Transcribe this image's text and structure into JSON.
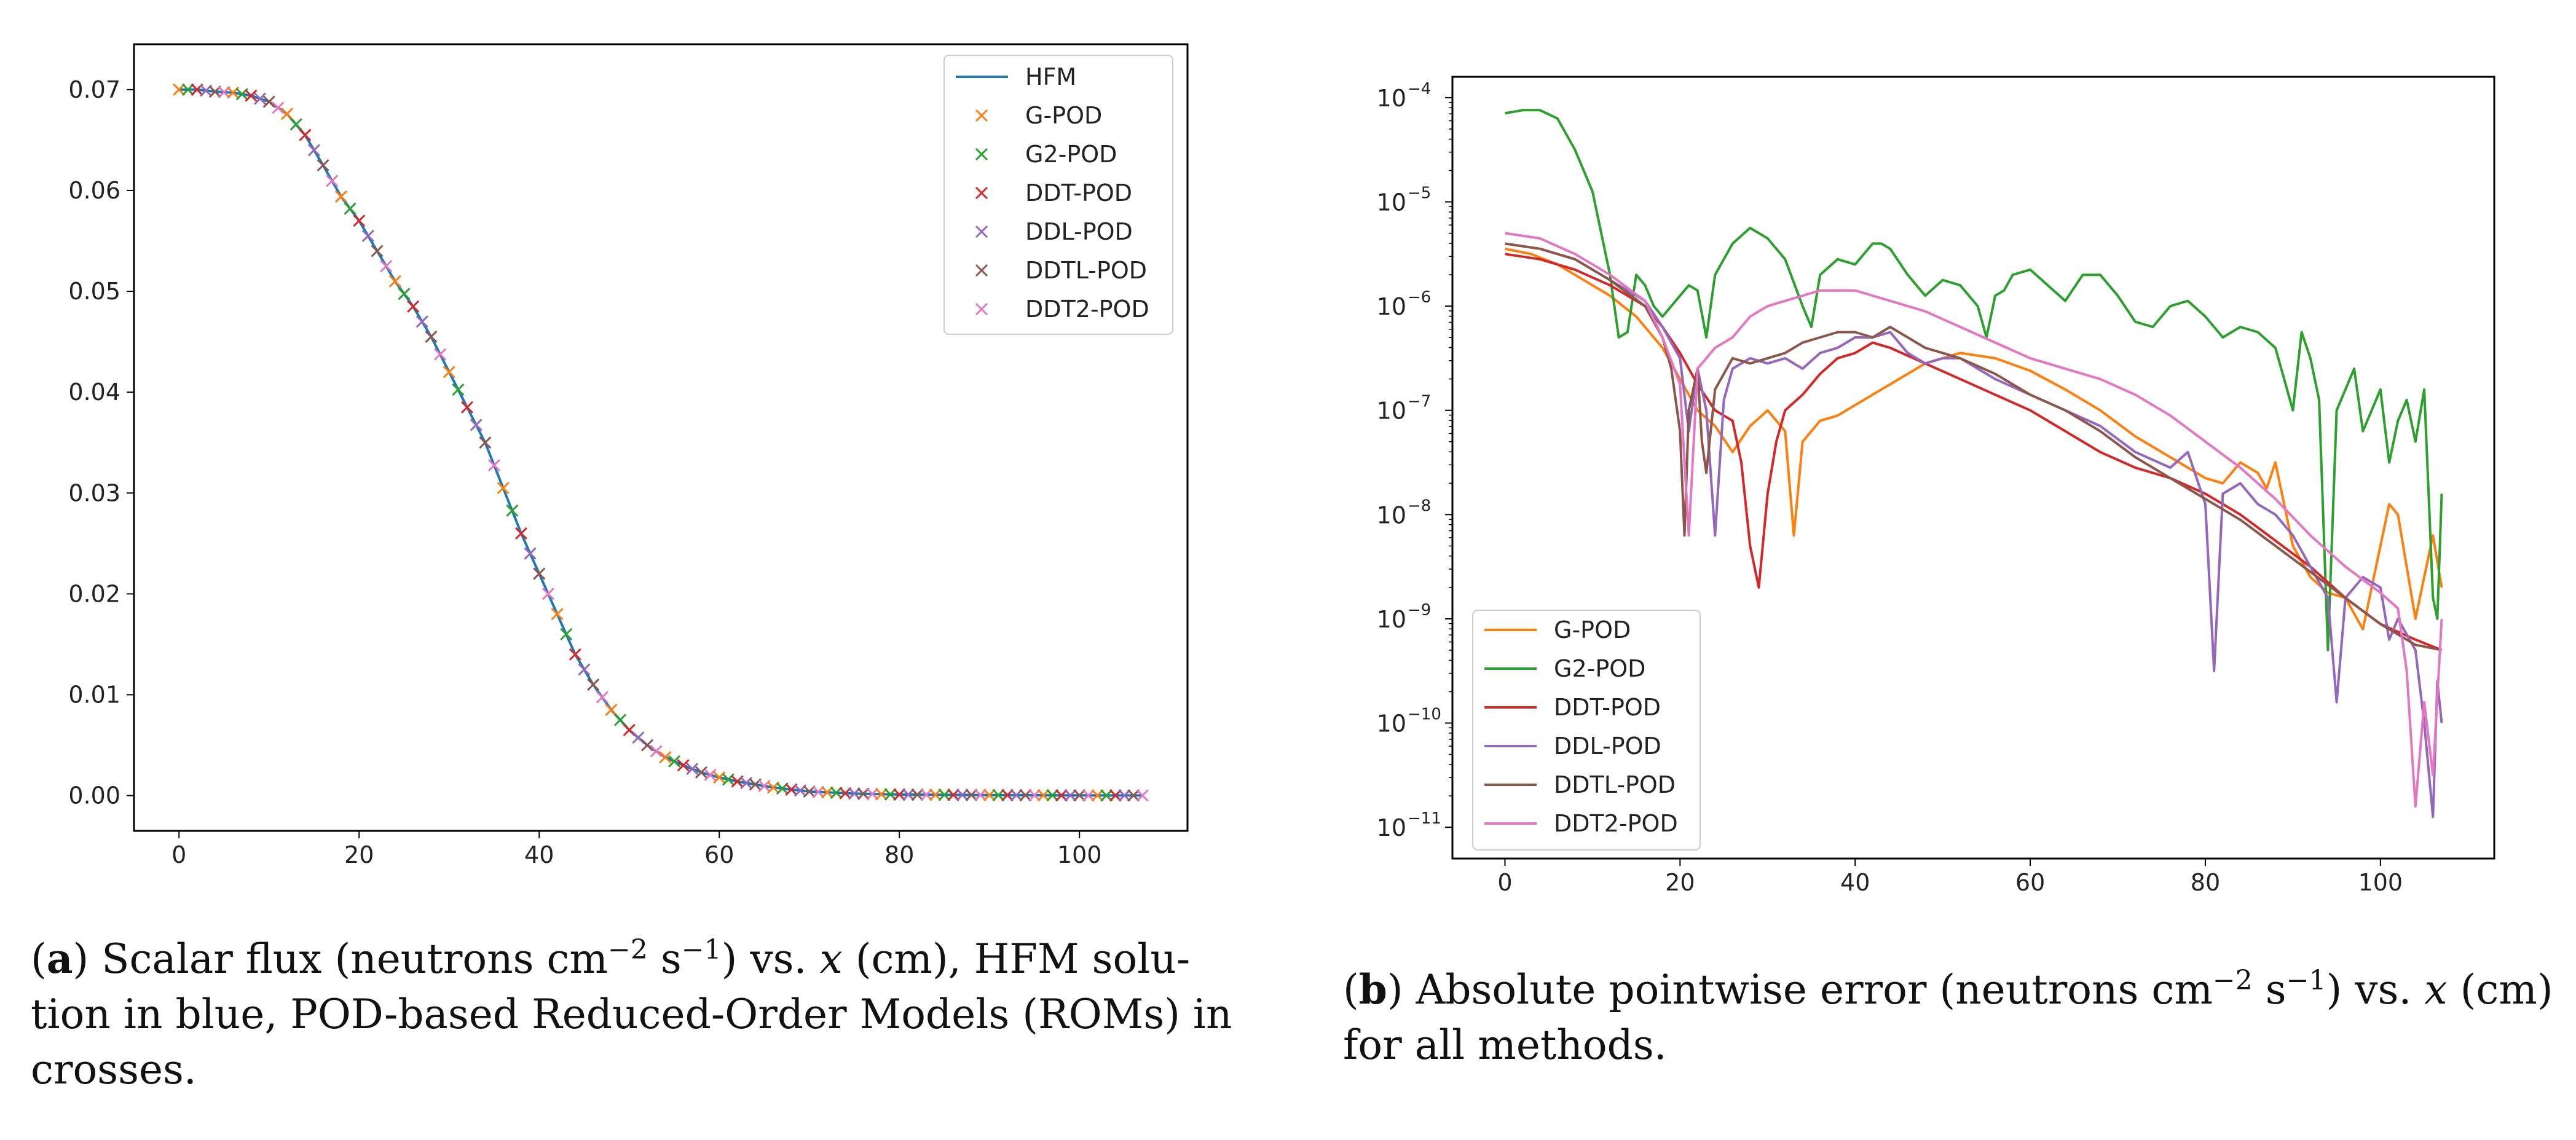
{
  "chart_data": [
    {
      "type": "line",
      "panel": "a",
      "xlim": [
        -5,
        112
      ],
      "ylim": [
        -0.0035,
        0.0745
      ],
      "x_ticks": [
        0,
        20,
        40,
        60,
        80,
        100
      ],
      "y_ticks": [
        0.0,
        0.01,
        0.02,
        0.03,
        0.04,
        0.05,
        0.06,
        0.07
      ],
      "x_tick_labels": [
        "0",
        "20",
        "40",
        "60",
        "80",
        "100"
      ],
      "y_tick_labels": [
        "0.00",
        "0.01",
        "0.02",
        "0.03",
        "0.04",
        "0.05",
        "0.06",
        "0.07"
      ],
      "legend_position": "top-right",
      "hfm_line": {
        "name": "HFM",
        "color": "#1f77b4",
        "x": [
          0,
          2,
          4,
          6,
          8,
          10,
          12,
          14,
          16,
          18,
          20,
          22,
          24,
          26,
          28,
          30,
          32,
          34,
          36,
          38,
          40,
          42,
          44,
          46,
          48,
          50,
          52,
          54,
          56,
          58,
          60,
          62,
          64,
          66,
          68,
          70,
          75,
          80,
          90,
          100,
          107
        ],
        "y": [
          0.07,
          0.07,
          0.0698,
          0.0697,
          0.0694,
          0.0688,
          0.0676,
          0.0655,
          0.0625,
          0.0594,
          0.057,
          0.054,
          0.051,
          0.0485,
          0.0455,
          0.042,
          0.0385,
          0.035,
          0.0305,
          0.026,
          0.022,
          0.018,
          0.014,
          0.011,
          0.0085,
          0.0065,
          0.005,
          0.0038,
          0.003,
          0.0023,
          0.0018,
          0.0014,
          0.0011,
          0.0008,
          0.0006,
          0.0004,
          0.0002,
          0.0001,
          5e-05,
          2e-05,
          1e-05
        ]
      },
      "marker_series": [
        {
          "name": "G-POD",
          "color": "#ff7f0e",
          "marker": "x"
        },
        {
          "name": "G2-POD",
          "color": "#2ca02c",
          "marker": "x"
        },
        {
          "name": "DDT-POD",
          "color": "#d62728",
          "marker": "x"
        },
        {
          "name": "DDL-POD",
          "color": "#9467bd",
          "marker": "x"
        },
        {
          "name": "DDTL-POD",
          "color": "#8c564b",
          "marker": "x"
        },
        {
          "name": "DDT2-POD",
          "color": "#e377c2",
          "marker": "x"
        }
      ],
      "marker_x_range": [
        0,
        107
      ],
      "marker_spacing": 1.0
    },
    {
      "type": "line",
      "panel": "b",
      "yscale": "log",
      "xlim": [
        -6,
        113
      ],
      "ylim_log10": [
        -11.3,
        -3.8
      ],
      "x_ticks": [
        0,
        20,
        40,
        60,
        80,
        100
      ],
      "x_tick_labels": [
        "0",
        "20",
        "40",
        "60",
        "80",
        "100"
      ],
      "y_ticks_log10": [
        -4,
        -5,
        -6,
        -7,
        -8,
        -9,
        -10,
        -11
      ],
      "y_tick_base": "10",
      "y_tick_exponents": [
        "−4",
        "−5",
        "−6",
        "−7",
        "−8",
        "−9",
        "−10",
        "−11"
      ],
      "legend_position": "bottom-left",
      "series": [
        {
          "name": "G-POD",
          "color": "#ff7f0e",
          "x": [
            0,
            3,
            6,
            9,
            12,
            15,
            18,
            20,
            22,
            24,
            26,
            28,
            30,
            32,
            33,
            34,
            36,
            38,
            40,
            44,
            48,
            52,
            56,
            60,
            64,
            68,
            72,
            76,
            80,
            82,
            84,
            86,
            87,
            88,
            90,
            92,
            94,
            96,
            98,
            100,
            101,
            102,
            104,
            106,
            107
          ],
          "y": [
            -5.45,
            -5.5,
            -5.6,
            -5.75,
            -5.9,
            -6.1,
            -6.4,
            -6.7,
            -7.0,
            -7.15,
            -7.4,
            -7.15,
            -7.0,
            -7.2,
            -8.2,
            -7.3,
            -7.1,
            -7.05,
            -6.95,
            -6.75,
            -6.55,
            -6.45,
            -6.5,
            -6.62,
            -6.8,
            -7.0,
            -7.25,
            -7.45,
            -7.65,
            -7.7,
            -7.5,
            -7.6,
            -7.75,
            -7.5,
            -8.3,
            -8.6,
            -8.75,
            -8.8,
            -9.1,
            -8.3,
            -7.9,
            -8.0,
            -9.0,
            -8.2,
            -8.7
          ]
        },
        {
          "name": "G2-POD",
          "color": "#2ca02c",
          "x": [
            0,
            2,
            4,
            6,
            8,
            10,
            12,
            13,
            14,
            15,
            16,
            17,
            18,
            19,
            20,
            21,
            22,
            23,
            24,
            26,
            28,
            30,
            32,
            34,
            35,
            36,
            38,
            40,
            42,
            43,
            44,
            46,
            48,
            50,
            52,
            54,
            55,
            56,
            57,
            58,
            60,
            62,
            64,
            66,
            68,
            70,
            72,
            74,
            76,
            78,
            80,
            82,
            84,
            86,
            88,
            89,
            90,
            91,
            92,
            93,
            94,
            95,
            96,
            97,
            98,
            99,
            100,
            101,
            102,
            103,
            104,
            105,
            106,
            106.5,
            107
          ],
          "y": [
            -4.15,
            -4.12,
            -4.12,
            -4.2,
            -4.5,
            -4.9,
            -5.7,
            -6.3,
            -6.25,
            -5.7,
            -5.8,
            -6.0,
            -6.1,
            -6.0,
            -5.9,
            -5.8,
            -5.85,
            -6.3,
            -5.7,
            -5.4,
            -5.25,
            -5.35,
            -5.55,
            -6.0,
            -6.2,
            -5.7,
            -5.55,
            -5.6,
            -5.4,
            -5.4,
            -5.45,
            -5.7,
            -5.9,
            -5.75,
            -5.8,
            -6.0,
            -6.3,
            -5.9,
            -5.85,
            -5.7,
            -5.65,
            -5.8,
            -5.95,
            -5.7,
            -5.7,
            -5.9,
            -6.15,
            -6.2,
            -6.0,
            -5.95,
            -6.1,
            -6.3,
            -6.2,
            -6.25,
            -6.4,
            -6.7,
            -7.0,
            -6.25,
            -6.5,
            -6.9,
            -9.3,
            -7.0,
            -6.8,
            -6.6,
            -7.2,
            -7.0,
            -6.8,
            -7.5,
            -7.1,
            -6.9,
            -7.3,
            -6.8,
            -8.8,
            -9.0,
            -7.8
          ]
        },
        {
          "name": "DDT-POD",
          "color": "#d62728",
          "x": [
            0,
            4,
            8,
            12,
            16,
            18,
            20,
            22,
            24,
            26,
            27,
            28,
            29,
            30,
            31,
            32,
            34,
            36,
            38,
            40,
            42,
            44,
            48,
            52,
            56,
            60,
            64,
            68,
            72,
            76,
            80,
            84,
            88,
            92,
            96,
            100,
            104,
            107
          ],
          "y": [
            -5.5,
            -5.55,
            -5.65,
            -5.8,
            -6.0,
            -6.2,
            -6.45,
            -6.75,
            -7.0,
            -7.1,
            -7.5,
            -8.3,
            -8.7,
            -7.8,
            -7.3,
            -7.0,
            -6.85,
            -6.65,
            -6.5,
            -6.45,
            -6.35,
            -6.4,
            -6.55,
            -6.7,
            -6.85,
            -7.0,
            -7.2,
            -7.4,
            -7.55,
            -7.65,
            -7.8,
            -8.0,
            -8.25,
            -8.5,
            -8.8,
            -9.05,
            -9.2,
            -9.3
          ]
        },
        {
          "name": "DDL-POD",
          "color": "#9467bd",
          "x": [
            0,
            4,
            8,
            12,
            16,
            18,
            20,
            21,
            22,
            23,
            24,
            25,
            26,
            28,
            30,
            32,
            34,
            36,
            38,
            40,
            42,
            44,
            46,
            48,
            50,
            52,
            56,
            60,
            64,
            68,
            72,
            76,
            78,
            80,
            81,
            82,
            84,
            86,
            88,
            90,
            92,
            94,
            95,
            96,
            98,
            100,
            101,
            102,
            104,
            105,
            106,
            106.5,
            107
          ],
          "y": [
            -5.4,
            -5.45,
            -5.55,
            -5.75,
            -5.95,
            -6.2,
            -6.5,
            -7.2,
            -6.6,
            -7.0,
            -8.2,
            -6.9,
            -6.6,
            -6.5,
            -6.55,
            -6.5,
            -6.6,
            -6.45,
            -6.4,
            -6.3,
            -6.3,
            -6.25,
            -6.45,
            -6.55,
            -6.5,
            -6.5,
            -6.7,
            -6.85,
            -7.0,
            -7.15,
            -7.4,
            -7.55,
            -7.4,
            -7.9,
            -9.5,
            -7.8,
            -7.7,
            -7.9,
            -8.0,
            -8.2,
            -8.5,
            -8.8,
            -9.8,
            -8.8,
            -8.6,
            -8.7,
            -9.2,
            -9.0,
            -9.3,
            -10.0,
            -10.9,
            -9.6,
            -10.0
          ]
        },
        {
          "name": "DDTL-POD",
          "color": "#8c564b",
          "x": [
            0,
            4,
            8,
            12,
            16,
            18,
            19,
            20,
            20.5,
            21,
            22,
            22.5,
            23,
            24,
            26,
            28,
            30,
            32,
            34,
            36,
            38,
            40,
            42,
            44,
            48,
            52,
            56,
            60,
            64,
            68,
            72,
            76,
            80,
            84,
            88,
            92,
            96,
            100,
            104,
            107
          ],
          "y": [
            -5.4,
            -5.45,
            -5.55,
            -5.75,
            -6.0,
            -6.3,
            -6.6,
            -7.2,
            -8.2,
            -7.0,
            -6.6,
            -7.3,
            -7.6,
            -6.8,
            -6.5,
            -6.55,
            -6.5,
            -6.45,
            -6.35,
            -6.3,
            -6.25,
            -6.25,
            -6.3,
            -6.2,
            -6.4,
            -6.5,
            -6.65,
            -6.85,
            -7.0,
            -7.2,
            -7.45,
            -7.65,
            -7.85,
            -8.05,
            -8.3,
            -8.55,
            -8.8,
            -9.05,
            -9.25,
            -9.3
          ]
        },
        {
          "name": "DDT2-POD",
          "color": "#e377c2",
          "x": [
            0,
            4,
            8,
            12,
            16,
            18,
            20,
            21,
            22,
            24,
            26,
            28,
            30,
            32,
            34,
            36,
            40,
            44,
            48,
            52,
            56,
            60,
            64,
            68,
            72,
            76,
            80,
            84,
            88,
            92,
            96,
            100,
            102,
            103,
            104,
            105,
            106,
            107
          ],
          "y": [
            -5.3,
            -5.35,
            -5.5,
            -5.7,
            -5.95,
            -6.3,
            -6.75,
            -8.2,
            -6.6,
            -6.4,
            -6.3,
            -6.1,
            -6.0,
            -5.95,
            -5.9,
            -5.85,
            -5.85,
            -5.95,
            -6.05,
            -6.2,
            -6.35,
            -6.5,
            -6.6,
            -6.7,
            -6.85,
            -7.05,
            -7.3,
            -7.55,
            -7.85,
            -8.2,
            -8.5,
            -8.75,
            -8.9,
            -9.5,
            -10.8,
            -9.8,
            -10.5,
            -9.0
          ]
        }
      ]
    }
  ],
  "captions": {
    "a": {
      "label": "a",
      "line1_before_sup1": ") Scalar flux (neutrons cm",
      "sup1": "−2",
      "between_sups": " s",
      "sup2": "−1",
      "line1_after": ") vs.  ",
      "x_var": "x",
      "line1_end": " (cm), HFM solu-",
      "line2": "tion in blue, POD-based Reduced-Order Models (ROMs) in",
      "line3": "crosses."
    },
    "b": {
      "label": "b",
      "line1_before_sup1": ") Absolute pointwise error (neutrons cm",
      "sup1": "−2",
      "between_sups": " s",
      "sup2": "−1",
      "line1_after": ") vs. ",
      "x_var": "x",
      "line1_end": " (cm)",
      "line2": "for all methods."
    }
  }
}
